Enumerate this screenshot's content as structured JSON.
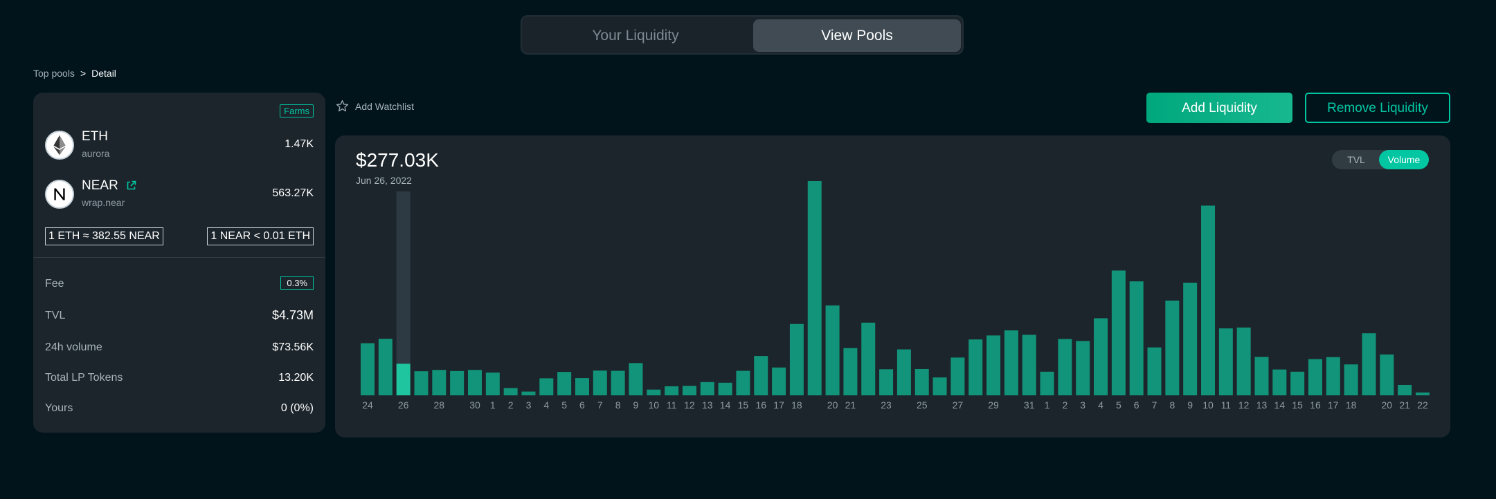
{
  "tabs": {
    "your_liquidity": "Your Liquidity",
    "view_pools": "View Pools"
  },
  "breadcrumb": {
    "root": "Top pools",
    "separator": ">",
    "current": "Detail"
  },
  "pool": {
    "farms_badge": "Farms",
    "tokens": [
      {
        "symbol": "ETH",
        "account": "aurora",
        "amount": "1.47K",
        "icon": "ethereum-icon"
      },
      {
        "symbol": "NEAR",
        "account": "wrap.near",
        "amount": "563.27K",
        "icon": "near-icon"
      }
    ],
    "rate_eth": "1 ETH ≈ 382.55 NEAR",
    "rate_near": "1 NEAR  < 0.01 ETH",
    "stats": {
      "fee": {
        "label": "Fee",
        "value": "0.3%"
      },
      "tvl": {
        "label": "TVL",
        "value": "$4.73M"
      },
      "volume_24h": {
        "label": "24h volume",
        "value": "$73.56K"
      },
      "lp_tokens": {
        "label": "Total LP Tokens",
        "value": "13.20K"
      },
      "yours": {
        "label": "Yours",
        "value": "0 (0%)"
      }
    }
  },
  "actions": {
    "watchlist": "Add Watchlist",
    "add_liquidity": "Add Liquidity",
    "remove_liquidity": "Remove Liquidity"
  },
  "chart_header": {
    "value": "$277.03K",
    "date": "Jun 26, 2022",
    "toggle_tvl": "TVL",
    "toggle_volume": "Volume"
  },
  "colors": {
    "bar": "#12947a",
    "bar_selected": "#1fc59f",
    "hover_column": "#2d3a44",
    "accent": "#00c6a2"
  },
  "chart_data": {
    "type": "bar",
    "series": [
      {
        "values": [
          236,
          256,
          143,
          109,
          115,
          110,
          115,
          103,
          33,
          17,
          77,
          106,
          78,
          112,
          111,
          146,
          26,
          41,
          43,
          60,
          57,
          111,
          178,
          126,
          323,
          970,
          407,
          214,
          329,
          118,
          208,
          119,
          81,
          171,
          253,
          271,
          294,
          274,
          107,
          255,
          246,
          349,
          565,
          516,
          217,
          429,
          510,
          859,
          303,
          307,
          174,
          117,
          107,
          164,
          173,
          140,
          281,
          185,
          47,
          13
        ]
      }
    ],
    "selected_index": 2,
    "x_tick_labels": [
      "24",
      "",
      "26",
      "",
      "28",
      "",
      "30",
      "1",
      "2",
      "3",
      "4",
      "5",
      "6",
      "7",
      "8",
      "9",
      "10",
      "11",
      "12",
      "13",
      "14",
      "15",
      "16",
      "17",
      "18",
      "",
      "20",
      "21",
      "",
      "23",
      "",
      "25",
      "",
      "27",
      "",
      "29",
      "",
      "31",
      "1",
      "2",
      "3",
      "4",
      "5",
      "6",
      "7",
      "8",
      "9",
      "10",
      "11",
      "12",
      "13",
      "14",
      "15",
      "16",
      "17",
      "18",
      "",
      "20",
      "21",
      "22"
    ],
    "xlabel": "",
    "ylabel": "",
    "grid": false
  }
}
